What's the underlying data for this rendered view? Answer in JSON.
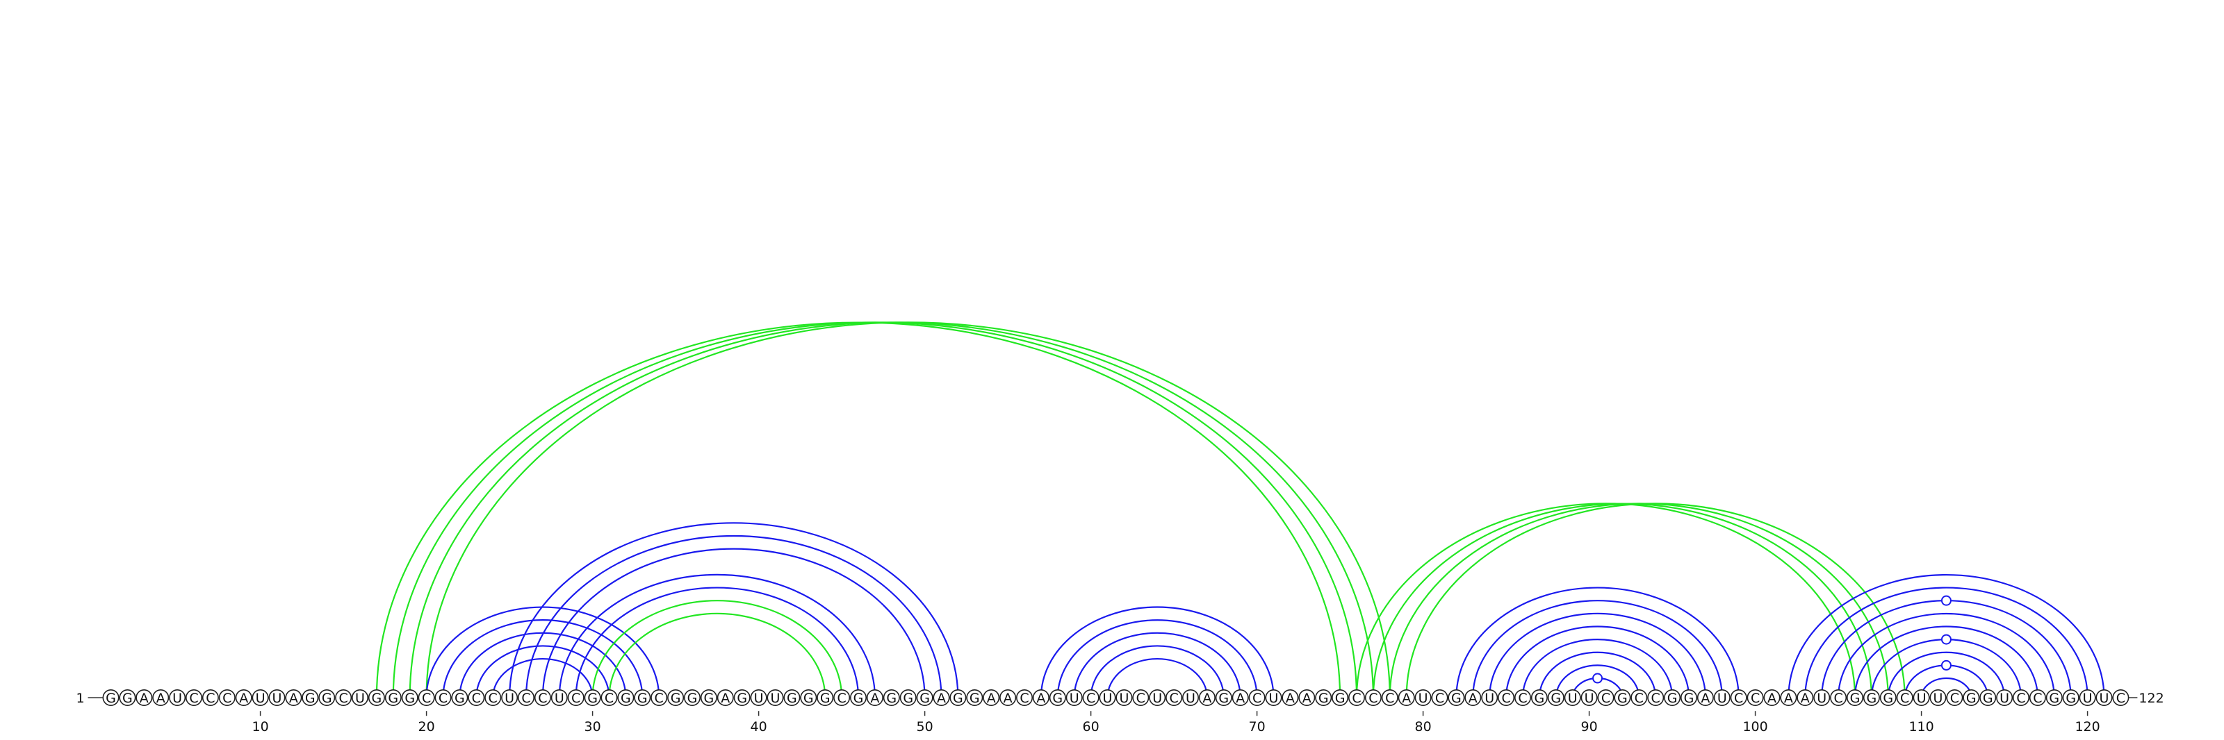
{
  "sequence": "GGAAUCCCAUUAGGCUGGGCCGCCUCCUCGCGGCGGGAGUUGGGCGAGGGAGGAACAGUCUUCUCUAGACUAAGGCCCAUCGAUCCGGUUCGCCGGAUCCAAAUCGGGCUUCGGUCCGGUUC",
  "start_label": "1",
  "end_label": "122",
  "tick_labels": [
    "10",
    "20",
    "30",
    "40",
    "50",
    "60",
    "70",
    "80",
    "90",
    "100",
    "110",
    "120"
  ],
  "tick_positions": [
    10,
    20,
    30,
    40,
    50,
    60,
    70,
    80,
    90,
    100,
    110,
    120
  ],
  "colors": {
    "blue_arcs": "#1a1aee",
    "green_arcs": "#22e622",
    "nucleotide_outline": "#222222",
    "background": "#ffffff"
  },
  "arc_groups": [
    {
      "name": "pseudoknot-1",
      "color": "green",
      "pairs": [
        [
          17,
          75
        ],
        [
          18,
          76
        ],
        [
          19,
          77
        ],
        [
          20,
          78
        ]
      ]
    },
    {
      "name": "stem-1",
      "color": "blue",
      "pairs": [
        [
          20,
          34
        ],
        [
          21,
          33
        ],
        [
          22,
          32
        ],
        [
          23,
          31
        ],
        [
          24,
          30
        ]
      ]
    },
    {
      "name": "stem-2",
      "color": "blue",
      "pairs": [
        [
          25,
          52
        ],
        [
          26,
          51
        ],
        [
          27,
          50
        ],
        [
          28,
          47
        ],
        [
          29,
          46
        ]
      ]
    },
    {
      "name": "pseudoknot-2",
      "color": "green",
      "pairs": [
        [
          30,
          45
        ],
        [
          31,
          44
        ]
      ]
    },
    {
      "name": "stem-3",
      "color": "blue",
      "pairs": [
        [
          57,
          71
        ],
        [
          58,
          70
        ],
        [
          59,
          69
        ],
        [
          60,
          68
        ],
        [
          61,
          67
        ]
      ]
    },
    {
      "name": "pseudoknot-3",
      "color": "green",
      "pairs": [
        [
          76,
          106
        ],
        [
          77,
          107
        ],
        [
          78,
          108
        ],
        [
          79,
          109
        ]
      ]
    },
    {
      "name": "stem-4",
      "color": "blue",
      "pairs": [
        [
          82,
          99
        ],
        [
          83,
          98
        ],
        [
          84,
          97
        ],
        [
          85,
          96
        ],
        [
          86,
          95
        ],
        [
          87,
          94
        ],
        [
          88,
          93
        ],
        [
          89,
          92
        ]
      ]
    },
    {
      "name": "stem-5",
      "color": "blue",
      "pairs": [
        [
          102,
          121
        ],
        [
          103,
          120
        ],
        [
          104,
          119
        ],
        [
          105,
          118
        ],
        [
          106,
          117
        ],
        [
          107,
          116
        ],
        [
          108,
          115
        ],
        [
          109,
          114
        ],
        [
          110,
          113
        ]
      ]
    }
  ],
  "noncanonical_markers": [
    {
      "pair": [
        89,
        92
      ],
      "color": "blue"
    },
    {
      "pair": [
        104,
        119
      ],
      "color": "blue"
    },
    {
      "pair": [
        107,
        116
      ],
      "color": "blue"
    },
    {
      "pair": [
        109,
        114
      ],
      "color": "blue"
    }
  ]
}
